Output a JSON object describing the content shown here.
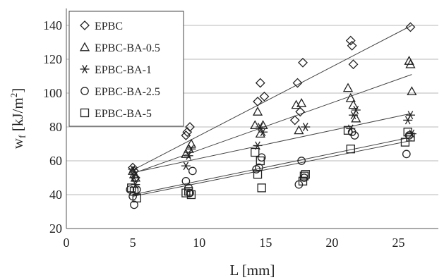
{
  "chart_data": {
    "type": "scatter",
    "xlabel": "L [mm]",
    "ylabel_base": "w",
    "ylabel_sub": "f",
    "ylabel_rest": " [kJ/m",
    "ylabel_sup": "2",
    "ylabel_end": "]",
    "xlim": [
      0,
      28
    ],
    "ylim": [
      20,
      150
    ],
    "xticks": [
      0,
      5,
      10,
      15,
      20,
      25
    ],
    "yticks": [
      20,
      40,
      60,
      80,
      100,
      120,
      140
    ],
    "grid": "horizontal",
    "legend_position": "top-left",
    "series": [
      {
        "name": "EPBC",
        "marker": "diamond",
        "points": [
          [
            5.0,
            56
          ],
          [
            5.1,
            54
          ],
          [
            5.2,
            50
          ],
          [
            9.0,
            75
          ],
          [
            9.1,
            77
          ],
          [
            9.3,
            80
          ],
          [
            14.4,
            95
          ],
          [
            14.6,
            106
          ],
          [
            14.9,
            98
          ],
          [
            17.2,
            84
          ],
          [
            17.4,
            106
          ],
          [
            17.6,
            89
          ],
          [
            17.8,
            118
          ],
          [
            21.4,
            131
          ],
          [
            21.5,
            128
          ],
          [
            21.6,
            117
          ],
          [
            25.9,
            139
          ]
        ],
        "trend": [
          [
            5.0,
            54.5
          ],
          [
            26.0,
            140
          ]
        ]
      },
      {
        "name": "EPBC-BA-0.5",
        "marker": "triangle",
        "points": [
          [
            5.0,
            54
          ],
          [
            5.1,
            52
          ],
          [
            5.2,
            50
          ],
          [
            9.0,
            64
          ],
          [
            9.2,
            67
          ],
          [
            9.4,
            70
          ],
          [
            14.2,
            81
          ],
          [
            14.4,
            89
          ],
          [
            14.6,
            76
          ],
          [
            14.8,
            81
          ],
          [
            17.3,
            93
          ],
          [
            17.5,
            78
          ],
          [
            17.7,
            94
          ],
          [
            21.2,
            103
          ],
          [
            21.4,
            97
          ],
          [
            21.6,
            93
          ],
          [
            21.8,
            85
          ],
          [
            25.8,
            119
          ],
          [
            25.9,
            117
          ],
          [
            26.0,
            101
          ]
        ],
        "trend": [
          [
            5.0,
            52.5
          ],
          [
            26.0,
            111
          ]
        ]
      },
      {
        "name": "EPBC-BA-1",
        "marker": "asterisk",
        "points": [
          [
            5.0,
            55
          ],
          [
            5.1,
            50
          ],
          [
            5.2,
            46
          ],
          [
            9.0,
            57
          ],
          [
            9.2,
            63
          ],
          [
            9.4,
            67
          ],
          [
            14.4,
            69
          ],
          [
            14.6,
            80
          ],
          [
            14.8,
            77
          ],
          [
            18.0,
            80
          ],
          [
            21.4,
            79
          ],
          [
            21.6,
            87
          ],
          [
            21.8,
            90
          ],
          [
            25.7,
            84
          ],
          [
            25.9,
            87
          ],
          [
            26.0,
            76
          ]
        ],
        "trend": [
          [
            5.0,
            53
          ],
          [
            26.0,
            88
          ]
        ]
      },
      {
        "name": "EPBC-BA-2.5",
        "marker": "circle",
        "points": [
          [
            4.8,
            43
          ],
          [
            5.0,
            39
          ],
          [
            5.1,
            34
          ],
          [
            5.3,
            43
          ],
          [
            9.0,
            48
          ],
          [
            9.2,
            44
          ],
          [
            9.3,
            41
          ],
          [
            9.5,
            54
          ],
          [
            14.3,
            55
          ],
          [
            14.5,
            56
          ],
          [
            14.7,
            62
          ],
          [
            17.5,
            46
          ],
          [
            17.7,
            60
          ],
          [
            17.9,
            50
          ],
          [
            21.5,
            77
          ],
          [
            21.7,
            75
          ],
          [
            25.6,
            64
          ],
          [
            25.8,
            75
          ]
        ],
        "trend": [
          [
            5.0,
            40
          ],
          [
            26.0,
            74
          ]
        ]
      },
      {
        "name": "EPBC-BA-5",
        "marker": "square",
        "points": [
          [
            4.9,
            44
          ],
          [
            5.1,
            42
          ],
          [
            5.3,
            38
          ],
          [
            9.0,
            41
          ],
          [
            9.2,
            42
          ],
          [
            9.4,
            40
          ],
          [
            14.2,
            65
          ],
          [
            14.4,
            52
          ],
          [
            14.6,
            60
          ],
          [
            14.7,
            44
          ],
          [
            17.8,
            48
          ],
          [
            17.9,
            51
          ],
          [
            18.0,
            52
          ],
          [
            21.2,
            78
          ],
          [
            21.4,
            67
          ],
          [
            25.5,
            71
          ],
          [
            25.7,
            77
          ],
          [
            25.9,
            74
          ]
        ],
        "trend": [
          [
            5.0,
            39
          ],
          [
            26.0,
            72
          ]
        ]
      }
    ]
  }
}
